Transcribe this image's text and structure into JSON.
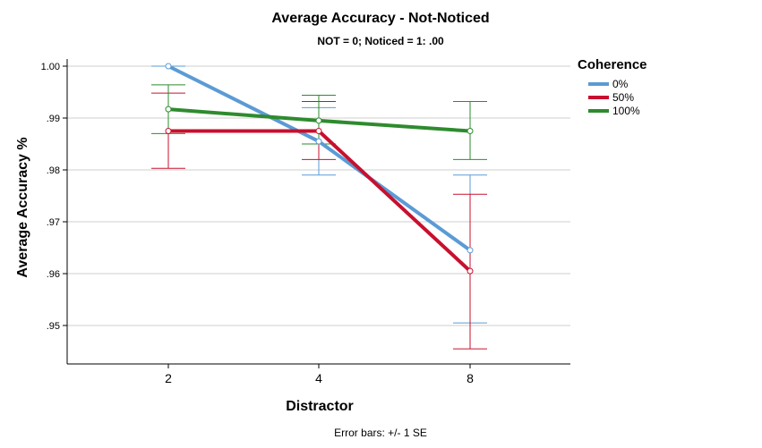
{
  "chart_data": {
    "type": "line",
    "title": "Average Accuracy - Not-Noticed",
    "subtitle": "NOT = 0; Noticed = 1: .00",
    "xlabel": "Distractor",
    "ylabel": "Average Accuracy %",
    "categories": [
      "2",
      "4",
      "8"
    ],
    "ylim": [
      0.944,
      1.0
    ],
    "yticks": [
      {
        "value": 1.0,
        "label": "1.00"
      },
      {
        "value": 0.99,
        "label": ".99"
      },
      {
        "value": 0.98,
        "label": ".98"
      },
      {
        "value": 0.97,
        "label": ".97"
      },
      {
        "value": 0.96,
        "label": ".96"
      },
      {
        "value": 0.95,
        "label": ".95"
      }
    ],
    "grid": true,
    "legend": {
      "title": "Coherence",
      "placement": "right"
    },
    "series": [
      {
        "name": "0%",
        "color": "#5b9bd5",
        "values": [
          1.0,
          0.9855,
          0.9645
        ],
        "err_low": [
          1.0,
          0.979,
          0.9505
        ],
        "err_high": [
          1.0,
          0.992,
          0.979
        ]
      },
      {
        "name": "50%",
        "color": "#c8102e",
        "values": [
          0.9875,
          0.9875,
          0.9605
        ],
        "err_low": [
          0.9803,
          0.982,
          0.9455
        ],
        "err_high": [
          0.9948,
          0.9932,
          0.9753
        ]
      },
      {
        "name": "100%",
        "color": "#2e8b2e",
        "values": [
          0.9917,
          0.9895,
          0.9875
        ],
        "err_low": [
          0.987,
          0.985,
          0.982
        ],
        "err_high": [
          0.9964,
          0.9944,
          0.9932
        ]
      }
    ],
    "footnote": "Error bars: +/- 1 SE"
  }
}
